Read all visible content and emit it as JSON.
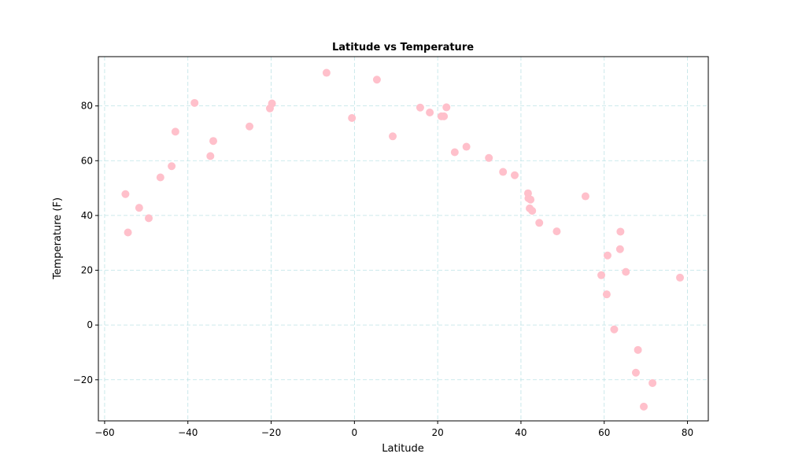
{
  "chart_data": {
    "type": "scatter",
    "title": "Latitude vs Temperature",
    "xlabel": "Latitude",
    "ylabel": "Temperature (F)",
    "xlim": [
      -61.5,
      85
    ],
    "ylim": [
      -35,
      98
    ],
    "xticks": [
      -60,
      -40,
      -20,
      0,
      20,
      40,
      60,
      80
    ],
    "yticks": [
      -20,
      0,
      20,
      40,
      60,
      80
    ],
    "grid": true,
    "point_color": "#ffc0cb",
    "grid_color": "#bde3e6",
    "series": [
      {
        "points": [
          [
            -55.0,
            47.8
          ],
          [
            -54.4,
            33.8
          ],
          [
            -51.7,
            42.8
          ],
          [
            -49.4,
            39.0
          ],
          [
            -46.6,
            53.9
          ],
          [
            -43.9,
            58.0
          ],
          [
            -43.0,
            70.6
          ],
          [
            -38.4,
            81.1
          ],
          [
            -34.6,
            61.7
          ],
          [
            -33.9,
            67.2
          ],
          [
            -25.2,
            72.5
          ],
          [
            -20.3,
            79.1
          ],
          [
            -19.8,
            80.9
          ],
          [
            -6.7,
            92.1
          ],
          [
            -0.6,
            75.6
          ],
          [
            5.4,
            89.6
          ],
          [
            9.2,
            68.9
          ],
          [
            15.8,
            79.4
          ],
          [
            18.1,
            77.6
          ],
          [
            20.9,
            76.2
          ],
          [
            21.5,
            76.2
          ],
          [
            22.1,
            79.5
          ],
          [
            24.1,
            63.1
          ],
          [
            26.9,
            65.1
          ],
          [
            32.3,
            61.0
          ],
          [
            35.7,
            55.9
          ],
          [
            38.5,
            54.7
          ],
          [
            41.7,
            48.1
          ],
          [
            41.8,
            46.3
          ],
          [
            42.1,
            42.6
          ],
          [
            42.3,
            45.8
          ],
          [
            42.7,
            41.7
          ],
          [
            44.4,
            37.3
          ],
          [
            48.6,
            34.2
          ],
          [
            55.5,
            47.0
          ],
          [
            59.3,
            18.2
          ],
          [
            60.6,
            11.2
          ],
          [
            60.8,
            25.4
          ],
          [
            62.4,
            -1.6
          ],
          [
            63.8,
            27.7
          ],
          [
            63.9,
            34.1
          ],
          [
            65.2,
            19.4
          ],
          [
            67.6,
            -17.4
          ],
          [
            68.1,
            -9.1
          ],
          [
            69.5,
            -29.8
          ],
          [
            71.6,
            -21.2
          ],
          [
            78.2,
            17.3
          ]
        ]
      }
    ]
  }
}
